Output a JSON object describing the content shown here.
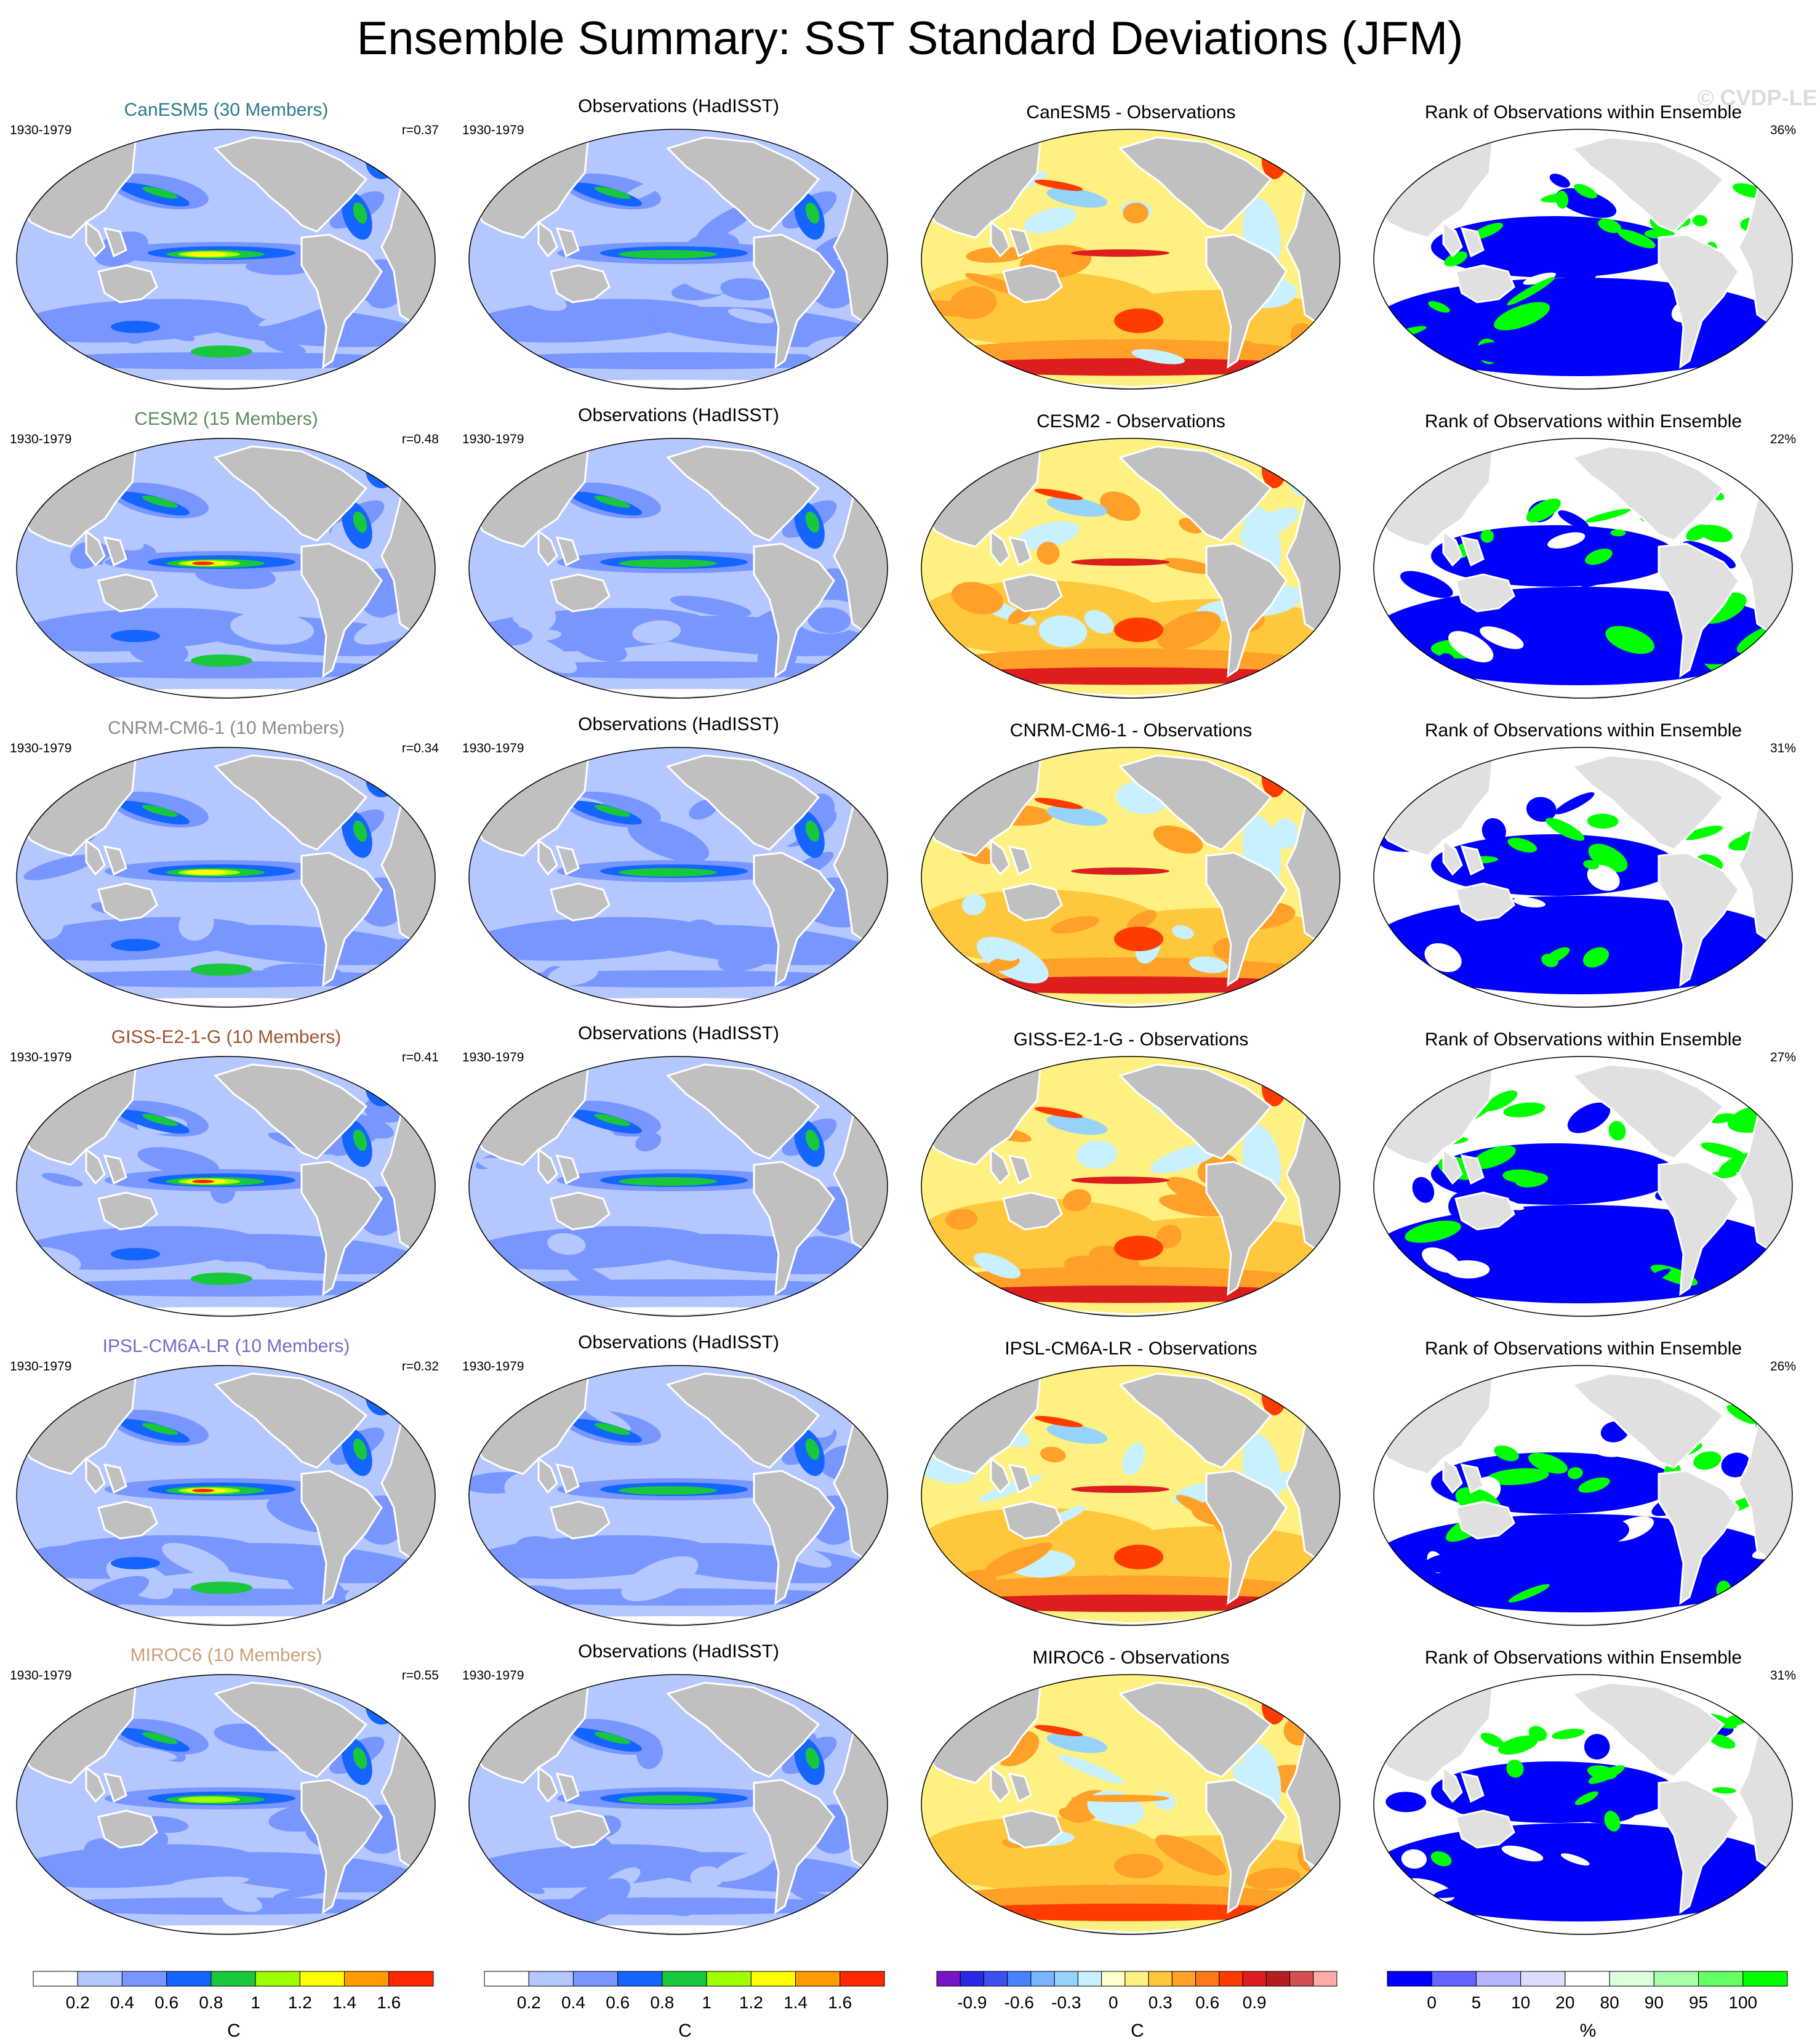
{
  "title": "Ensemble Summary: SST Standard Deviations (JFM)",
  "watermark": "© CVDP-LE",
  "colors": {
    "std": [
      "#ffffff",
      "#b4c8ff",
      "#7896ff",
      "#1464ff",
      "#18c83c",
      "#a0ff00",
      "#ffff00",
      "#ff9b00",
      "#ff2800"
    ],
    "diff": [
      "#7814c8",
      "#2828e6",
      "#3c50f0",
      "#4682ff",
      "#78b4ff",
      "#96d2fa",
      "#c8f0ff",
      "#ffffcc",
      "#fff082",
      "#ffc83c",
      "#ffa028",
      "#ff7814",
      "#ff3c00",
      "#dc1e1e",
      "#b41e1e",
      "#d25050",
      "#ffaaaa"
    ],
    "rank": [
      "#0000ff",
      "#6464ff",
      "#b4b4ff",
      "#dcdcff",
      "#ffffff",
      "#dcffdc",
      "#aaffaa",
      "#64ff64",
      "#00ff00"
    ],
    "land": "#c0c0c0",
    "land_rank": "#e0e0e0",
    "coast": "#ffffff",
    "model_title_colors": [
      "#2b7a8c",
      "#5a8c5a",
      "#8c8c8c",
      "#a0522d",
      "#7b68c8",
      "#c8a078"
    ]
  },
  "rows": [
    {
      "model": "CanESM5 (30 Members)",
      "name": "CanESM5",
      "period": "1930-1979",
      "r": "r=0.37",
      "obs_title": "Observations (HadISST)",
      "diff_title": "CanESM5 - Observations",
      "rank_title": "Rank of Observations within Ensemble",
      "rank_pct": "36%"
    },
    {
      "model": "CESM2 (15 Members)",
      "name": "CESM2",
      "period": "1930-1979",
      "r": "r=0.48",
      "obs_title": "Observations (HadISST)",
      "diff_title": "CESM2 - Observations",
      "rank_title": "Rank of Observations within Ensemble",
      "rank_pct": "22%"
    },
    {
      "model": "CNRM-CM6-1 (10 Members)",
      "name": "CNRM-CM6-1",
      "period": "1930-1979",
      "r": "r=0.34",
      "obs_title": "Observations (HadISST)",
      "diff_title": "CNRM-CM6-1 - Observations",
      "rank_title": "Rank of Observations within Ensemble",
      "rank_pct": "31%"
    },
    {
      "model": "GISS-E2-1-G (10 Members)",
      "name": "GISS-E2-1-G",
      "period": "1930-1979",
      "r": "r=0.41",
      "obs_title": "Observations (HadISST)",
      "diff_title": "GISS-E2-1-G - Observations",
      "rank_title": "Rank of Observations within Ensemble",
      "rank_pct": "27%"
    },
    {
      "model": "IPSL-CM6A-LR (10 Members)",
      "name": "IPSL-CM6A-LR",
      "period": "1930-1979",
      "r": "r=0.32",
      "obs_title": "Observations (HadISST)",
      "diff_title": "IPSL-CM6A-LR - Observations",
      "rank_title": "Rank of Observations within Ensemble",
      "rank_pct": "26%"
    },
    {
      "model": "MIROC6 (10 Members)",
      "name": "MIROC6",
      "period": "1930-1979",
      "r": "r=0.55",
      "obs_title": "Observations (HadISST)",
      "diff_title": "MIROC6 - Observations",
      "rank_title": "Rank of Observations within Ensemble",
      "rank_pct": "31%"
    }
  ],
  "colorbars": [
    {
      "unit": "C",
      "labels": [
        "0.2",
        "0.4",
        "0.6",
        "0.8",
        "1",
        "1.2",
        "1.4",
        "1.6"
      ]
    },
    {
      "unit": "C",
      "labels": [
        "0.2",
        "0.4",
        "0.6",
        "0.8",
        "1",
        "1.2",
        "1.4",
        "1.6"
      ]
    },
    {
      "unit": "C",
      "labels": [
        "-0.9",
        "-0.6",
        "-0.3",
        "0",
        "0.3",
        "0.6",
        "0.9"
      ]
    },
    {
      "unit": "%",
      "labels": [
        "0",
        "5",
        "10",
        "20",
        "80",
        "90",
        "95",
        "100"
      ]
    }
  ]
}
